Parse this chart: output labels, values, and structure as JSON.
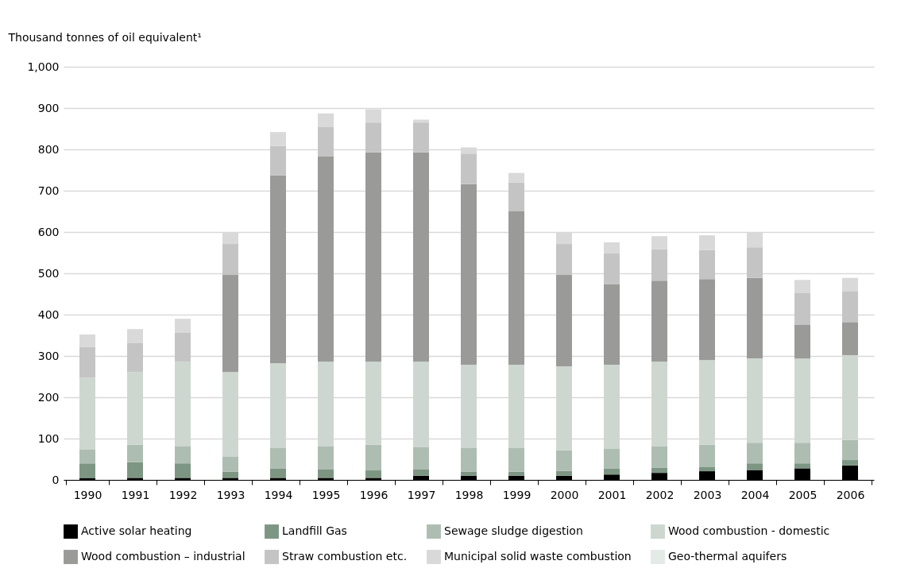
{
  "chart_data": {
    "type": "bar",
    "stacked": true,
    "ylabel": "Thousand tonnes of oil equivalent¹",
    "categories": [
      "1990",
      "1991",
      "1992",
      "1993",
      "1994",
      "1995",
      "1996",
      "1997",
      "1998",
      "1999",
      "2000",
      "2001",
      "2002",
      "2003",
      "2004",
      "2005",
      "2006"
    ],
    "series": [
      {
        "name": "Active solar heating",
        "color": "#000000",
        "values": [
          5,
          5,
          5,
          5,
          5,
          5,
          5,
          10,
          10,
          10,
          10,
          13,
          17,
          21,
          24,
          28,
          35
        ]
      },
      {
        "name": "Landfill Gas",
        "color": "#7d9683",
        "values": [
          35,
          38,
          35,
          15,
          22,
          20,
          18,
          15,
          10,
          10,
          12,
          14,
          12,
          11,
          16,
          12,
          13
        ]
      },
      {
        "name": "Sewage sludge digestion",
        "color": "#aebdb2",
        "values": [
          33,
          42,
          42,
          36,
          50,
          57,
          62,
          55,
          57,
          57,
          50,
          48,
          52,
          53,
          50,
          50,
          49
        ]
      },
      {
        "name": "Wood combustion - domestic",
        "color": "#cdd7cf",
        "values": [
          174,
          176,
          204,
          205,
          205,
          204,
          201,
          206,
          202,
          202,
          203,
          204,
          205,
          205,
          204,
          204,
          205
        ]
      },
      {
        "name": "Wood combustion – industrial",
        "color": "#9a9a98",
        "values": [
          0,
          0,
          0,
          235,
          455,
          497,
          507,
          507,
          437,
          371,
          221,
          195,
          196,
          196,
          195,
          81,
          80
        ]
      },
      {
        "name": "Straw combustion etc.",
        "color": "#c4c4c4",
        "values": [
          75,
          71,
          71,
          75,
          71,
          72,
          72,
          72,
          74,
          70,
          75,
          74,
          76,
          70,
          74,
          77,
          75
        ]
      },
      {
        "name": "Municipal solid waste combustion",
        "color": "#d9d9d9",
        "values": [
          30,
          33,
          33,
          27,
          34,
          32,
          32,
          7,
          15,
          23,
          27,
          27,
          32,
          36,
          37,
          32,
          32
        ]
      },
      {
        "name": "Geo-thermal aquifers",
        "color": "#e4ebe6",
        "values": [
          0,
          0,
          0,
          0,
          0,
          0,
          0,
          0,
          0,
          0,
          0,
          0,
          0,
          0,
          0,
          0,
          0
        ]
      }
    ],
    "ylim": [
      0,
      1000
    ],
    "yticks": [
      0,
      100,
      200,
      300,
      400,
      500,
      600,
      700,
      800,
      900,
      {
        "value": 1000,
        "label": "1,000"
      }
    ],
    "grid": "y",
    "legend": "bottom"
  }
}
